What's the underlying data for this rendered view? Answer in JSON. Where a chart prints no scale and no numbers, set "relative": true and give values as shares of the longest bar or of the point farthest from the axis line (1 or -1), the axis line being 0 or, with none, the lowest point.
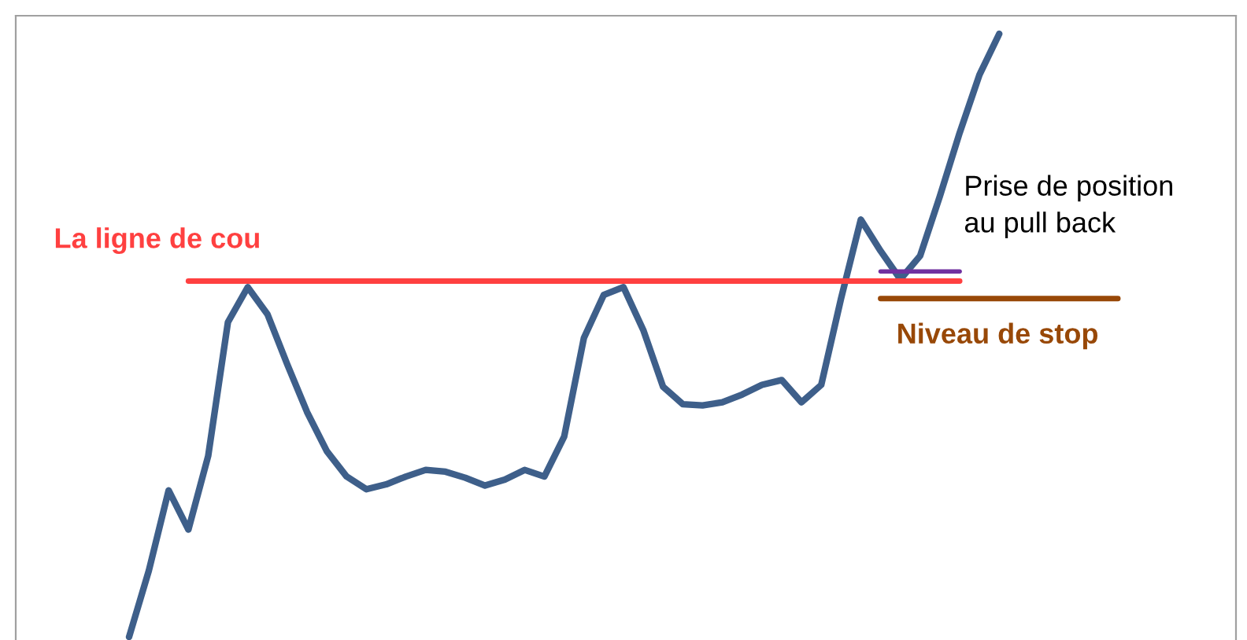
{
  "chart_data": {
    "type": "line",
    "relative": true,
    "line_style": "solid",
    "categories": [
      null,
      null,
      null,
      null,
      null,
      null,
      null,
      null,
      null,
      null,
      null,
      null,
      null,
      null,
      null,
      null,
      null,
      null,
      null,
      null,
      null,
      null,
      null,
      null,
      null,
      null,
      null,
      null,
      null,
      null,
      null,
      null,
      null,
      null,
      null,
      null,
      null,
      null,
      null,
      null,
      null,
      null,
      null,
      null,
      null,
      null,
      null,
      null,
      null,
      null,
      null
    ],
    "annotations": [
      "Prise de position\nau pull back"
    ],
    "series": [
      {
        "color": "#3e5f8a",
        "values": [
          0.0,
          0.11,
          0.243,
          0.178,
          0.3,
          0.522,
          0.58,
          0.535,
          0.452,
          0.373,
          0.308,
          0.266,
          0.245,
          0.253,
          0.266,
          0.277,
          0.274,
          0.264,
          0.251,
          0.261,
          0.277,
          0.266,
          0.332,
          0.496,
          0.567,
          0.58,
          0.509,
          0.415,
          0.386,
          0.384,
          0.389,
          0.402,
          0.418,
          0.426,
          0.389,
          0.418,
          0.561,
          0.692,
          0.64,
          0.593,
          0.632,
          0.731,
          0.836,
          0.932,
          1.0,
          null,
          null,
          null,
          null,
          null,
          null
        ]
      },
      {
        "name": "La ligne de cou",
        "color": "#ff4040",
        "values": [
          null,
          null,
          null,
          0.59,
          0.59,
          0.59,
          0.59,
          0.59,
          0.59,
          0.59,
          0.59,
          0.59,
          0.59,
          0.59,
          0.59,
          0.59,
          0.59,
          0.59,
          0.59,
          0.59,
          0.59,
          0.59,
          0.59,
          0.59,
          0.59,
          0.59,
          0.59,
          0.59,
          0.59,
          0.59,
          0.59,
          0.59,
          0.59,
          0.59,
          0.59,
          0.59,
          0.59,
          0.59,
          0.59,
          0.59,
          0.59,
          0.59,
          0.59,
          null,
          null,
          null,
          null,
          null,
          null,
          null,
          null
        ]
      },
      {
        "color": "#7030a0",
        "values": [
          null,
          null,
          null,
          null,
          null,
          null,
          null,
          null,
          null,
          null,
          null,
          null,
          null,
          null,
          null,
          null,
          null,
          null,
          null,
          null,
          null,
          null,
          null,
          null,
          null,
          null,
          null,
          null,
          null,
          null,
          null,
          null,
          null,
          null,
          null,
          null,
          null,
          null,
          0.606,
          0.606,
          0.606,
          0.606,
          0.606,
          null,
          null,
          null,
          null,
          null,
          null,
          null,
          null
        ]
      },
      {
        "name": "Niveau de stop",
        "color": "#984807",
        "values": [
          null,
          null,
          null,
          null,
          null,
          null,
          null,
          null,
          null,
          null,
          null,
          null,
          null,
          null,
          null,
          null,
          null,
          null,
          null,
          null,
          null,
          null,
          null,
          null,
          null,
          null,
          null,
          null,
          null,
          null,
          null,
          null,
          null,
          null,
          null,
          null,
          null,
          null,
          0.561,
          0.561,
          0.561,
          0.561,
          0.561,
          0.561,
          0.561,
          0.561,
          0.561,
          0.561,
          0.561,
          0.561,
          0.561
        ]
      }
    ]
  }
}
